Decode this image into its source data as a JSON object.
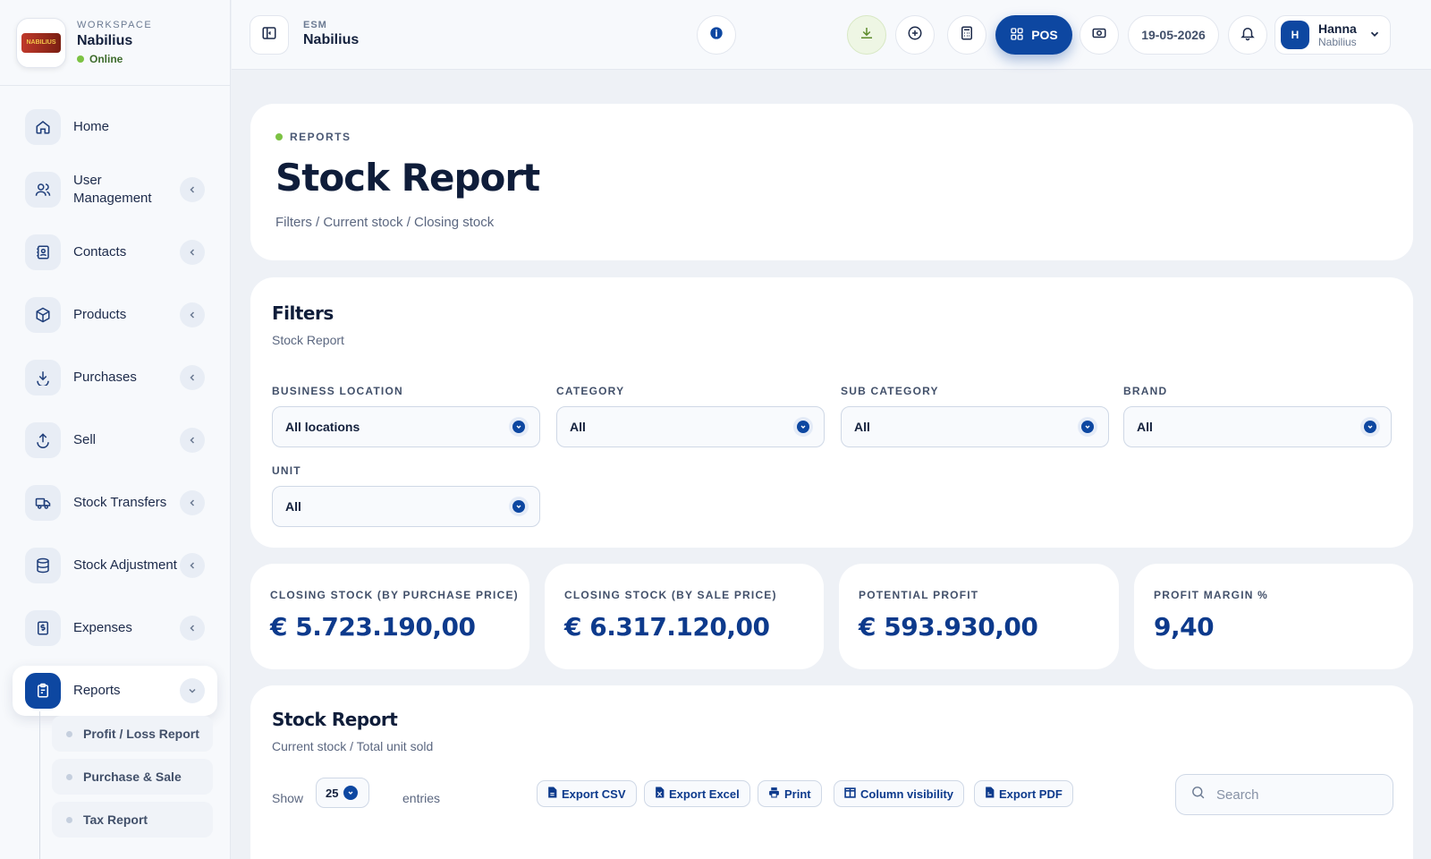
{
  "workspace": {
    "label": "WORKSPACE",
    "name": "Nabilius",
    "status": "Online"
  },
  "sidebar": {
    "items": [
      {
        "label": "Home",
        "icon": "home-icon"
      },
      {
        "label": "User Management",
        "icon": "users-icon"
      },
      {
        "label": "Contacts",
        "icon": "contacts-icon"
      },
      {
        "label": "Products",
        "icon": "box-icon"
      },
      {
        "label": "Purchases",
        "icon": "download-icon"
      },
      {
        "label": "Sell",
        "icon": "upload-icon"
      },
      {
        "label": "Stock Transfers",
        "icon": "truck-icon"
      },
      {
        "label": "Stock Adjustment",
        "icon": "database-icon"
      },
      {
        "label": "Expenses",
        "icon": "receipt-icon"
      },
      {
        "label": "Reports",
        "icon": "clipboard-icon"
      }
    ],
    "sub_items": [
      "Profit / Loss Report",
      "Purchase & Sale",
      "Tax Report"
    ]
  },
  "topbar": {
    "esm_label": "ESM",
    "esm_name": "Nabilius",
    "pos_label": "POS",
    "date": "19-05-2026",
    "user_initial": "H",
    "user_name": "Hanna",
    "user_org": "Nabilius"
  },
  "hero": {
    "eyebrow": "REPORTS",
    "title": "Stock Report",
    "crumb": "Filters / Current stock / Closing stock"
  },
  "filters": {
    "title": "Filters",
    "subtitle": "Stock Report",
    "fields": [
      {
        "label": "BUSINESS LOCATION",
        "value": "All locations"
      },
      {
        "label": "CATEGORY",
        "value": "All"
      },
      {
        "label": "SUB CATEGORY",
        "value": "All"
      },
      {
        "label": "BRAND",
        "value": "All"
      },
      {
        "label": "UNIT",
        "value": "All"
      }
    ]
  },
  "stats": [
    {
      "label": "CLOSING STOCK (BY PURCHASE PRICE)",
      "value": "€ 5.723.190,00"
    },
    {
      "label": "CLOSING STOCK (BY SALE PRICE)",
      "value": "€ 6.317.120,00"
    },
    {
      "label": "POTENTIAL PROFIT",
      "value": "€ 593.930,00"
    },
    {
      "label": "PROFIT MARGIN %",
      "value": "9,40"
    }
  ],
  "table": {
    "title": "Stock Report",
    "subtitle": "Current stock / Total unit sold",
    "show_label": "Show",
    "page_length": "25",
    "entries_label": "entries",
    "buttons": [
      "Export CSV",
      "Export Excel",
      "Print",
      "Column visibility",
      "Export PDF"
    ],
    "search_placeholder": "Search"
  },
  "colors": {
    "accent": "#0d47a1",
    "online": "#7cc243"
  }
}
